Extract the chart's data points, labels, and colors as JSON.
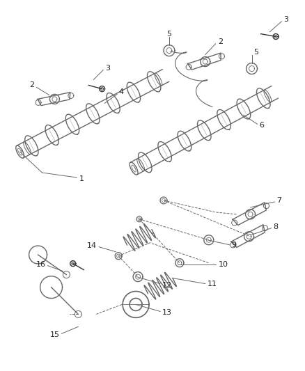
{
  "bg_color": "#ffffff",
  "lc": "#666666",
  "dc": "#333333",
  "fig_width": 4.38,
  "fig_height": 5.33,
  "dpi": 100
}
